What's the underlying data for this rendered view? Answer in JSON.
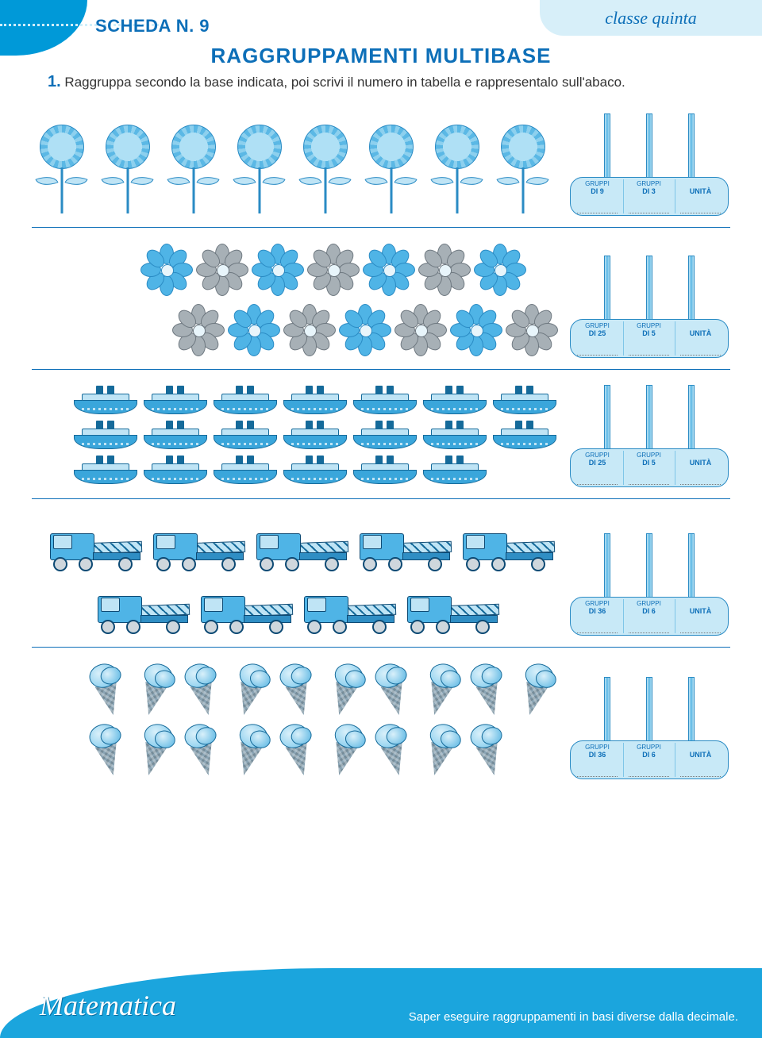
{
  "header": {
    "scheda_label": "SCHEDA N. 9",
    "class_label": "classe quinta",
    "title": "RAGGRUPPAMENTI MULTIBASE"
  },
  "instruction": {
    "number": "1.",
    "text": "Raggruppa secondo la base indicata, poi scrivi il numero in tabella e rappresentalo sull'abaco."
  },
  "exercises": [
    {
      "icon": "sunflower",
      "count": 8,
      "layout": "single-row",
      "abacus": {
        "col1_top": "GRUPPI",
        "col1_val": "DI 9",
        "col2_top": "GRUPPI",
        "col2_val": "DI 3",
        "col3": "UNITÀ"
      }
    },
    {
      "icon": "daisy",
      "count": 14,
      "layout": "stagger-2x7",
      "colors": [
        "blue",
        "grey",
        "blue",
        "grey",
        "blue",
        "grey",
        "blue",
        "grey",
        "blue",
        "grey",
        "blue",
        "grey",
        "blue",
        "grey"
      ],
      "abacus": {
        "col1_top": "GRUPPI",
        "col1_val": "DI 25",
        "col2_top": "GRUPPI",
        "col2_val": "DI 5",
        "col3": "UNITÀ"
      }
    },
    {
      "icon": "ship",
      "count": 20,
      "layout": "grid-3x7",
      "abacus": {
        "col1_top": "GRUPPI",
        "col1_val": "DI 25",
        "col2_top": "GRUPPI",
        "col2_val": "DI 5",
        "col3": "UNITÀ"
      }
    },
    {
      "icon": "crane",
      "count": 9,
      "layout": "rows-5-4",
      "abacus": {
        "col1_top": "GRUPPI",
        "col1_val": "DI 36",
        "col2_top": "GRUPPI",
        "col2_val": "DI 6",
        "col3": "UNITÀ"
      }
    },
    {
      "icon": "cone",
      "count": 19,
      "layout": "rows-10-9",
      "abacus": {
        "col1_top": "GRUPPI",
        "col1_val": "DI 36",
        "col2_top": "GRUPPI",
        "col2_val": "DI 6",
        "col3": "UNITÀ"
      }
    }
  ],
  "footer": {
    "brand": "Matematica",
    "objective": "Saper eseguire raggruppamenti in basi diverse dalla decimale."
  },
  "colors": {
    "primary": "#0d6fb8",
    "light": "#bfe4f5",
    "mid": "#5bb8e5",
    "footer": "#1ba5dd"
  }
}
